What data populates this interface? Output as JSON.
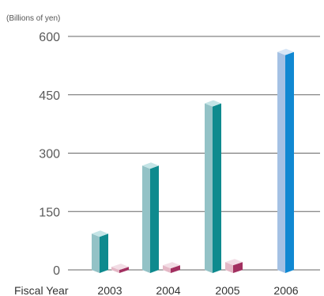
{
  "chart_data": {
    "type": "bar",
    "unit_label": "(Billions of yen)",
    "xlabel": "Fiscal Year",
    "ylabel": "",
    "categories": [
      "2003",
      "2004",
      "2005",
      "2006"
    ],
    "series": [
      {
        "values": [
          93,
          268,
          428,
          560
        ]
      },
      {
        "values": [
          8,
          12,
          20,
          null
        ]
      }
    ],
    "ylim": [
      0,
      600
    ],
    "yticks": [
      0,
      150,
      300,
      450,
      600
    ],
    "grid": true,
    "colors": {
      "series1_front": "#93c2c6",
      "series1_side": "#0e8a8e",
      "series1_top": "#c4e4e6",
      "series1_2006_front": "#a4c1e4",
      "series1_2006_side": "#1088d2",
      "series1_2006_top": "#d6e6f6",
      "series2_front": "#e4b8c6",
      "series2_side": "#a23060",
      "series2_top": "#f2dde5",
      "gridline": "#666666"
    }
  }
}
